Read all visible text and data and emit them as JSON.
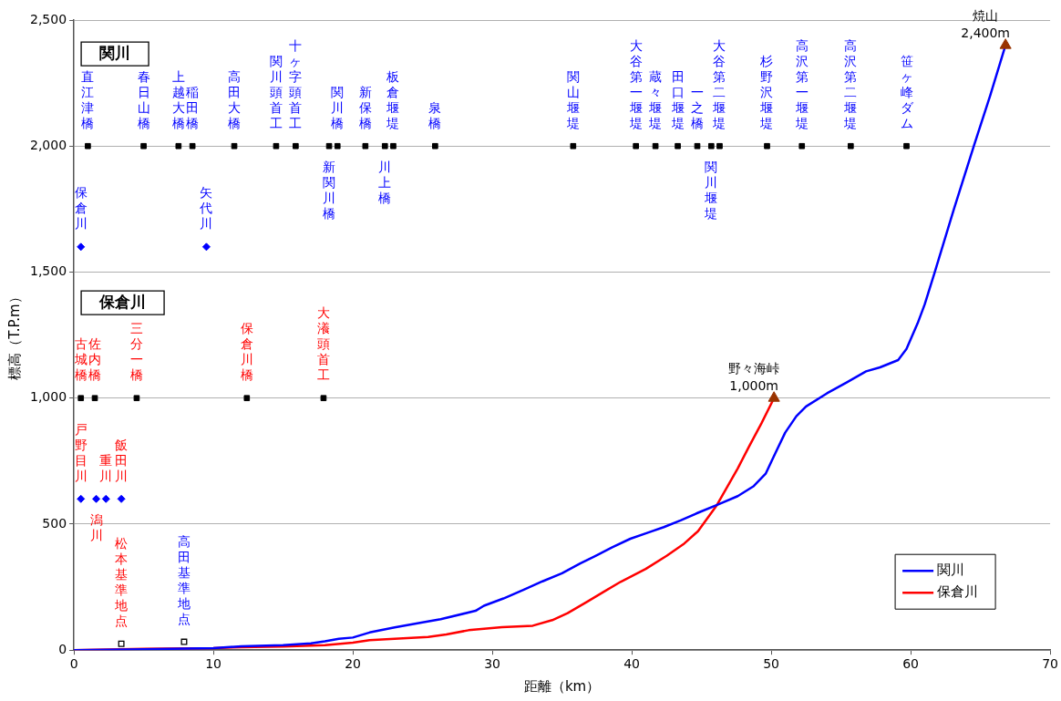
{
  "chart_data": {
    "type": "line",
    "xlabel": "距離（km）",
    "ylabel": "標高（T.P.m）",
    "xlim": [
      0,
      70
    ],
    "xticks": [
      0,
      10,
      20,
      30,
      40,
      50,
      60,
      70
    ],
    "ylim": [
      0,
      2500
    ],
    "yticks": [
      0,
      500,
      {
        "value": 1000,
        "label": "1,000"
      },
      {
        "value": 1500,
        "label": "1,500"
      },
      {
        "value": 2000,
        "label": "2,000"
      },
      {
        "value": 2500,
        "label": "2,500"
      }
    ],
    "grid": "y",
    "legend": "bottom right",
    "line_style": "solid",
    "series": [
      {
        "name": "関川",
        "color": "#0000ff",
        "marker": "none",
        "x": [
          0,
          5,
          10,
          12,
          15,
          17,
          18,
          19,
          20,
          21.2,
          23,
          25,
          26.3,
          28.8,
          29.4,
          30.8,
          32.3,
          33.6,
          35,
          36.3,
          37.4,
          38.6,
          39.9,
          41.1,
          42.3,
          43.5,
          44.75,
          46.2,
          47.6,
          48.75,
          49.6,
          50.3,
          51,
          51.8,
          52.5,
          54,
          55.4,
          56.8,
          57.8,
          59.1,
          59.7,
          60.5,
          61,
          61.7,
          63.1,
          64.55,
          65.7,
          66.8
        ],
        "values": [
          0,
          3,
          8,
          15,
          20,
          27,
          35,
          45,
          50,
          70,
          90,
          110,
          123,
          156,
          176,
          205,
          241,
          273,
          305,
          344,
          374,
          408,
          442,
          465,
          488,
          515,
          545,
          578,
          611,
          651,
          700,
          782,
          863,
          928,
          967,
          1019,
          1062,
          1106,
          1122,
          1151,
          1195,
          1297,
          1371,
          1495,
          1750,
          2004,
          2200,
          2400
        ]
      },
      {
        "name": "保倉川",
        "color": "#ff0000",
        "marker": "none",
        "x": [
          0,
          5,
          10,
          12,
          15,
          18,
          20,
          21.2,
          23,
          25.4,
          26.7,
          28.3,
          30.7,
          32.9,
          34.3,
          35.4,
          36.8,
          38,
          39.2,
          41,
          42.5,
          43.7,
          44.75,
          46.1,
          47.6,
          48.4,
          49.3,
          50.2
        ],
        "values": [
          0,
          5,
          8,
          12,
          14,
          20,
          30,
          40,
          45,
          52,
          62,
          79,
          91,
          97,
          119,
          147,
          192,
          232,
          271,
          322,
          374,
          420,
          472,
          575,
          721,
          807,
          900,
          1000
        ]
      },
      {
        "type": "scatter",
        "color": "#000000",
        "marker": "square",
        "x": [
          1.0,
          5.0,
          7.5,
          8.5,
          11.5,
          14.5,
          15.9,
          18.3,
          18.9,
          20.9,
          22.3,
          22.9,
          25.9,
          35.8,
          40.3,
          41.7,
          43.3,
          44.7,
          45.7,
          46.3,
          49.7,
          52.2,
          55.7,
          59.7
        ],
        "values": [
          2000,
          2000,
          2000,
          2000,
          2000,
          2000,
          2000,
          2000,
          2000,
          2000,
          2000,
          2000,
          2000,
          2000,
          2000,
          2000,
          2000,
          2000,
          2000,
          2000,
          2000,
          2000,
          2000,
          2000
        ]
      },
      {
        "type": "scatter",
        "color": "#0000ff",
        "marker": "diamond",
        "x": [
          0.5,
          9.5
        ],
        "values": [
          1600,
          1600
        ]
      },
      {
        "type": "scatter",
        "color": "#000000",
        "marker": "square",
        "x": [
          0.5,
          1.5,
          4.5,
          12.4,
          17.9
        ],
        "values": [
          1000,
          1000,
          1000,
          1000,
          1000
        ]
      },
      {
        "type": "scatter",
        "color": "#0000ff",
        "marker": "diamond",
        "x": [
          0.5,
          1.6,
          2.3,
          3.4
        ],
        "values": [
          600,
          600,
          600,
          600
        ]
      },
      {
        "type": "scatter",
        "color": "#000000",
        "marker": "square",
        "x": [
          3.4
        ],
        "values": [
          25
        ]
      },
      {
        "type": "scatter",
        "color": "#000000",
        "marker": "square",
        "x": [
          7.9
        ],
        "values": [
          33
        ]
      },
      {
        "type": "scatter",
        "color": "#993300",
        "marker": "triangle",
        "x": [
          66.8,
          50.2
        ],
        "values": [
          2400,
          1000
        ]
      }
    ],
    "annotations": [
      "関川",
      "保倉川",
      {
        "text": "直江津橋",
        "x": 1.0,
        "y": 2000
      },
      {
        "text": "春日山橋",
        "x": 5.0,
        "y": 2000
      },
      {
        "text": "上越大橋",
        "x": 7.5,
        "y": 2000
      },
      {
        "text": "稲田橋",
        "x": 8.5,
        "y": 2000
      },
      {
        "text": "高田大橋",
        "x": 11.5,
        "y": 2000
      },
      {
        "text": "関川頭首工",
        "x": 14.5,
        "y": 2000
      },
      {
        "text": "十ヶ字頭首工",
        "x": 15.9,
        "y": 2000
      },
      {
        "text": "新関川橋",
        "x": 18.3,
        "y": 2000
      },
      {
        "text": "関川橋",
        "x": 18.9,
        "y": 2000
      },
      {
        "text": "新保橋",
        "x": 20.9,
        "y": 2000
      },
      {
        "text": "川上橋",
        "x": 22.3,
        "y": 2000
      },
      {
        "text": "板倉堰堤",
        "x": 22.9,
        "y": 2000
      },
      {
        "text": "泉橋",
        "x": 25.9,
        "y": 2000
      },
      {
        "text": "関山堰堤",
        "x": 35.8,
        "y": 2000
      },
      {
        "text": "大谷第一堰堤",
        "x": 40.3,
        "y": 2000
      },
      {
        "text": "蔵々堰堤",
        "x": 41.7,
        "y": 2000
      },
      {
        "text": "田口堰堤",
        "x": 43.3,
        "y": 2000
      },
      {
        "text": "一之橋",
        "x": 44.7,
        "y": 2000
      },
      {
        "text": "関川堰堤",
        "x": 45.7,
        "y": 2000
      },
      {
        "text": "大谷第二堰堤",
        "x": 46.3,
        "y": 2000
      },
      {
        "text": "杉野沢堰堤",
        "x": 49.7,
        "y": 2000
      },
      {
        "text": "高沢第一堰堤",
        "x": 52.2,
        "y": 2000
      },
      {
        "text": "高沢第二堰堤",
        "x": 55.7,
        "y": 2000
      },
      {
        "text": "笹ヶ峰ダム",
        "x": 59.7,
        "y": 2000
      },
      {
        "text": "保倉川",
        "x": 0.5,
        "y": 1600
      },
      {
        "text": "矢代川",
        "x": 9.5,
        "y": 1600
      },
      {
        "text": "古城橋",
        "x": 0.5,
        "y": 1000
      },
      {
        "text": "佐内橋",
        "x": 1.5,
        "y": 1000
      },
      {
        "text": "三分一橋",
        "x": 4.5,
        "y": 1000
      },
      {
        "text": "保倉川橋",
        "x": 12.4,
        "y": 1000
      },
      {
        "text": "大瀁頭首工",
        "x": 17.9,
        "y": 1000
      },
      {
        "text": "戸野目川",
        "x": 0.5,
        "y": 600
      },
      {
        "text": "潟川",
        "x": 1.6,
        "y": 600
      },
      {
        "text": "重川",
        "x": 2.3,
        "y": 600
      },
      {
        "text": "飯田川",
        "x": 3.4,
        "y": 600
      },
      {
        "text": "松本基準地点",
        "x": 3.4,
        "y": 25
      },
      {
        "text": "高田基準地点",
        "x": 7.9,
        "y": 33
      },
      {
        "text": "焼山\n2,400m",
        "x": 66.8,
        "y": 2400
      },
      {
        "text": "野々海峠\n1,000m",
        "x": 50.2,
        "y": 1000
      }
    ]
  }
}
